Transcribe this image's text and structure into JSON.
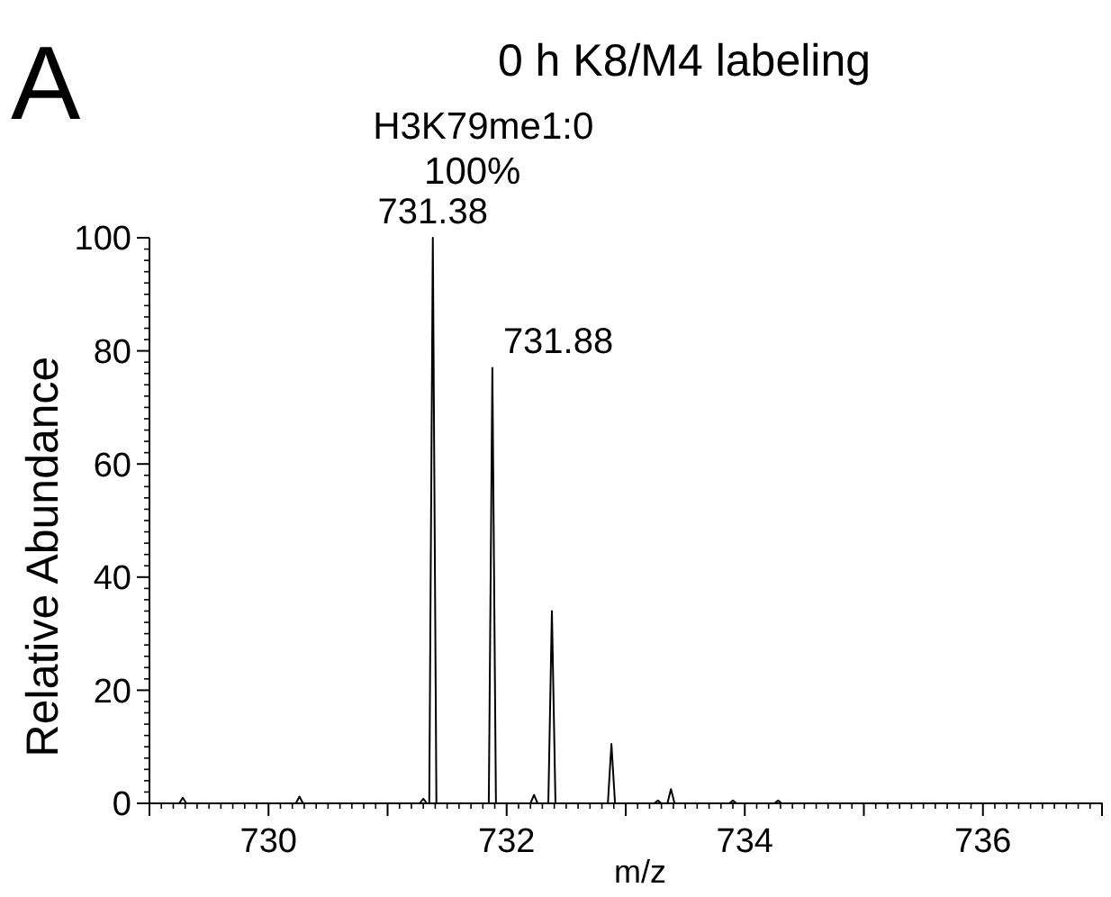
{
  "chart_data": {
    "type": "line",
    "title": "0 h K8/M4 labeling",
    "xlabel": "m/z",
    "ylabel": "Relative Abundance",
    "annotations": [
      "A",
      "H3K79me1:0",
      "100%",
      {
        "text": "731.38",
        "x": 731.38,
        "y": 100
      },
      {
        "text": "731.88",
        "x": 731.88,
        "y": 77
      }
    ],
    "series": [
      {
        "color": "#000000",
        "x": [
          729.0,
          729.25,
          729.28,
          729.31,
          730.23,
          730.26,
          730.29,
          731.27,
          731.3,
          731.33,
          731.35,
          731.38,
          731.41,
          731.85,
          731.88,
          731.91,
          732.2,
          732.23,
          732.26,
          732.35,
          732.38,
          732.41,
          732.85,
          732.88,
          732.91,
          733.24,
          733.27,
          733.3,
          733.35,
          733.38,
          733.41,
          733.87,
          733.9,
          733.93,
          734.25,
          734.28,
          734.31,
          737.0
        ],
        "values": [
          0,
          0,
          1,
          0,
          0,
          1.2,
          0,
          0,
          0.8,
          0,
          0,
          100,
          0,
          0,
          77,
          0,
          0,
          1.5,
          0,
          0,
          34,
          0,
          0,
          10.5,
          0,
          0,
          0.5,
          0,
          0,
          2.5,
          0,
          0,
          0.5,
          0,
          0,
          0.5,
          0,
          0
        ]
      }
    ],
    "xlim": [
      729,
      737
    ],
    "xticks": [
      {
        "value": 729,
        "label": null
      },
      730,
      {
        "value": 731,
        "label": null
      },
      732,
      {
        "value": 733,
        "label": null
      },
      734,
      {
        "value": 735,
        "label": null
      },
      736,
      {
        "value": 737,
        "label": null
      }
    ],
    "ylim": [
      0,
      100
    ],
    "yticks": [
      0,
      20,
      40,
      60,
      80,
      100
    ],
    "marker": "none",
    "line_style": "solid"
  }
}
